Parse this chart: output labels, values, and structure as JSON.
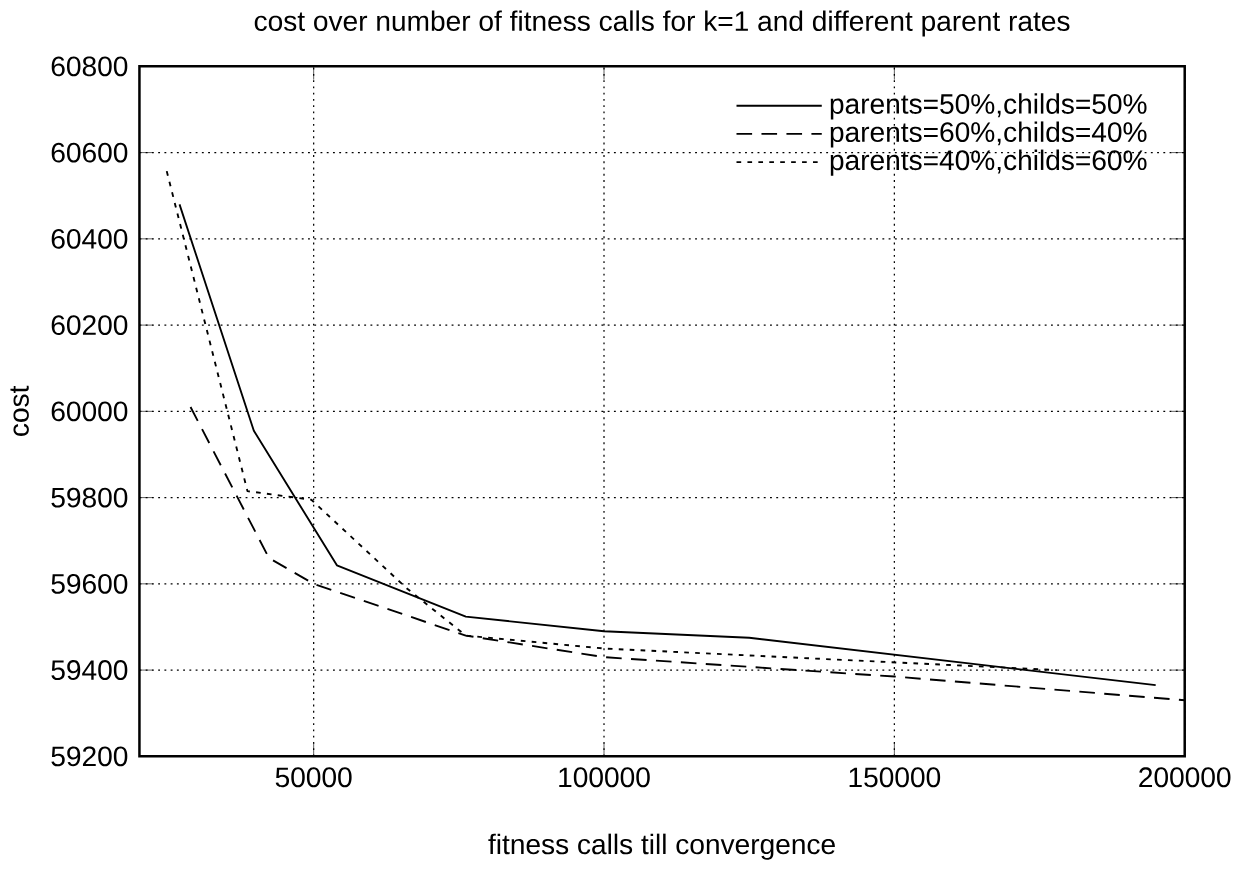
{
  "chart_data": {
    "type": "line",
    "title": "cost over number of fitness calls for k=1 and different parent rates",
    "xlabel": "fitness calls till convergence",
    "ylabel": "cost",
    "xlim": [
      20000,
      200000
    ],
    "xticks": [
      50000,
      100000,
      150000,
      200000
    ],
    "ylim": [
      59200,
      60800
    ],
    "yticks": [
      59200,
      59400,
      59600,
      59800,
      60000,
      60200,
      60400,
      60600,
      60800
    ],
    "grid": true,
    "legend": "top right",
    "marker": "none",
    "series": [
      {
        "name": "parents=50%,childs=50%",
        "color": "#000000",
        "line_style": "solid",
        "x": [
          26900,
          39700,
          54000,
          76200,
          100000,
          125000,
          195000
        ],
        "values": [
          60480,
          59955,
          59643,
          59524,
          59490,
          59475,
          59365
        ]
      },
      {
        "name": "parents=60%,childs=40%",
        "color": "#000000",
        "line_style": "dashed",
        "x": [
          28800,
          42300,
          50000,
          76200,
          100000,
          150000,
          200000
        ],
        "values": [
          60010,
          59660,
          59600,
          59480,
          59430,
          59385,
          59330
        ]
      },
      {
        "name": "parents=40%,childs=60%",
        "color": "#000000",
        "line_style": "dotted",
        "x": [
          24700,
          38600,
          49600,
          66000,
          76200,
          100000,
          178000
        ],
        "values": [
          60557,
          59815,
          59795,
          59590,
          59480,
          59450,
          59400
        ]
      }
    ]
  }
}
